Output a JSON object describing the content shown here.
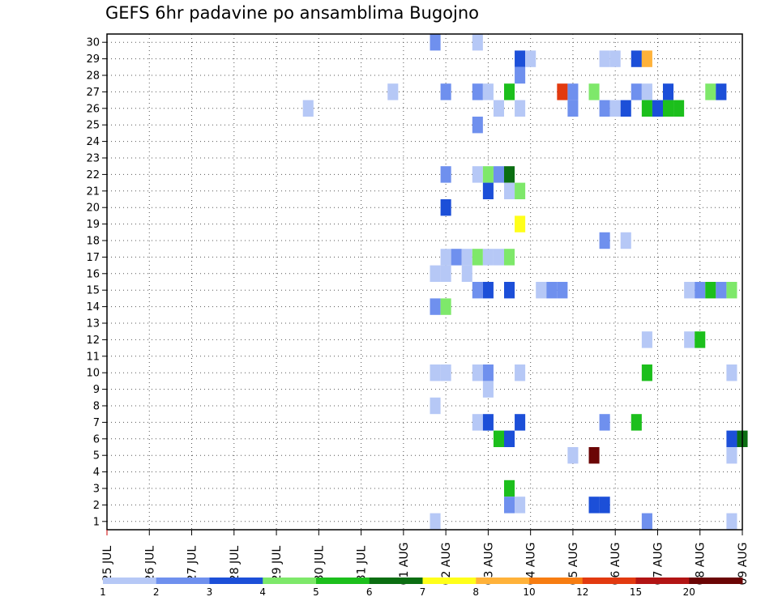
{
  "chart_data": {
    "type": "heatmap",
    "title": "GEFS 6hr padavine po ansamblima Bugojno",
    "xlabel": "",
    "ylabel": "",
    "x_tick_labels": [
      "25 JUL",
      "26 JUL",
      "27 JUL",
      "28 JUL",
      "29 JUL",
      "30 JUL",
      "31 JUL",
      "01 AUG",
      "02 AUG",
      "03 AUG",
      "04 AUG",
      "05 AUG",
      "06 AUG",
      "07 AUG",
      "08 AUG",
      "09 AUG"
    ],
    "x_range_days": [
      0,
      15
    ],
    "y_tick_labels": [
      "1",
      "2",
      "3",
      "4",
      "5",
      "6",
      "7",
      "8",
      "9",
      "10",
      "11",
      "12",
      "13",
      "14",
      "15",
      "16",
      "17",
      "18",
      "19",
      "20",
      "21",
      "22",
      "23",
      "24",
      "25",
      "26",
      "27",
      "28",
      "29",
      "30"
    ],
    "y_range": [
      0.5,
      30.5
    ],
    "grid": true,
    "colorbar": {
      "levels": [
        1,
        2,
        3,
        4,
        5,
        6,
        7,
        8,
        10,
        12,
        15,
        20
      ],
      "tick_labels": [
        "1",
        "2",
        "3",
        "4",
        "5",
        "6",
        "7",
        "8",
        "10",
        "12",
        "15",
        "20"
      ],
      "colors": [
        "#b6c8f6",
        "#6f90ee",
        "#1c4fd8",
        "#7ee86a",
        "#1cbf1c",
        "#0b6e12",
        "#ffff1a",
        "#ffb23a",
        "#f77d12",
        "#e23a10",
        "#b21414",
        "#6b0505"
      ]
    },
    "cells": [
      {
        "member": 30,
        "day": 7.75,
        "bin": 1
      },
      {
        "member": 30,
        "day": 8.75,
        "bin": 0
      },
      {
        "member": 29,
        "day": 9.75,
        "bin": 2
      },
      {
        "member": 29,
        "day": 10,
        "bin": 0
      },
      {
        "member": 29,
        "day": 11.75,
        "bin": 0
      },
      {
        "member": 29,
        "day": 12,
        "bin": 0
      },
      {
        "member": 29,
        "day": 12.5,
        "bin": 2
      },
      {
        "member": 29,
        "day": 12.75,
        "bin": 7
      },
      {
        "member": 28,
        "day": 9.75,
        "bin": 1
      },
      {
        "member": 27,
        "day": 6.75,
        "bin": 0
      },
      {
        "member": 27,
        "day": 8,
        "bin": 1
      },
      {
        "member": 27,
        "day": 8.75,
        "bin": 1
      },
      {
        "member": 27,
        "day": 9,
        "bin": 0
      },
      {
        "member": 27,
        "day": 9.5,
        "bin": 4
      },
      {
        "member": 27,
        "day": 10.75,
        "bin": 9
      },
      {
        "member": 27,
        "day": 11,
        "bin": 1
      },
      {
        "member": 27,
        "day": 11.5,
        "bin": 3
      },
      {
        "member": 27,
        "day": 12.5,
        "bin": 1
      },
      {
        "member": 27,
        "day": 12.75,
        "bin": 0
      },
      {
        "member": 27,
        "day": 13.25,
        "bin": 2
      },
      {
        "member": 27,
        "day": 14.25,
        "bin": 3
      },
      {
        "member": 27,
        "day": 14.5,
        "bin": 2
      },
      {
        "member": 26,
        "day": 4.75,
        "bin": 0
      },
      {
        "member": 26,
        "day": 9.25,
        "bin": 0
      },
      {
        "member": 26,
        "day": 9.75,
        "bin": 0
      },
      {
        "member": 26,
        "day": 11,
        "bin": 1
      },
      {
        "member": 26,
        "day": 11.75,
        "bin": 1
      },
      {
        "member": 26,
        "day": 12,
        "bin": 0
      },
      {
        "member": 26,
        "day": 12.25,
        "bin": 2
      },
      {
        "member": 26,
        "day": 12.75,
        "bin": 4
      },
      {
        "member": 26,
        "day": 13,
        "bin": 2
      },
      {
        "member": 26,
        "day": 13.25,
        "bin": 4
      },
      {
        "member": 26,
        "day": 13.5,
        "bin": 4
      },
      {
        "member": 25,
        "day": 8.75,
        "bin": 1
      },
      {
        "member": 22,
        "day": 8,
        "bin": 1
      },
      {
        "member": 22,
        "day": 8.75,
        "bin": 0
      },
      {
        "member": 22,
        "day": 9,
        "bin": 3
      },
      {
        "member": 22,
        "day": 9.25,
        "bin": 1
      },
      {
        "member": 22,
        "day": 9.5,
        "bin": 5
      },
      {
        "member": 21,
        "day": 9,
        "bin": 2
      },
      {
        "member": 21,
        "day": 9.5,
        "bin": 0
      },
      {
        "member": 21,
        "day": 9.75,
        "bin": 3
      },
      {
        "member": 20,
        "day": 8,
        "bin": 2
      },
      {
        "member": 19,
        "day": 9.75,
        "bin": 6
      },
      {
        "member": 18,
        "day": 11.75,
        "bin": 1
      },
      {
        "member": 18,
        "day": 12.25,
        "bin": 0
      },
      {
        "member": 17,
        "day": 8,
        "bin": 0
      },
      {
        "member": 17,
        "day": 8.25,
        "bin": 1
      },
      {
        "member": 17,
        "day": 8.5,
        "bin": 0
      },
      {
        "member": 17,
        "day": 8.75,
        "bin": 3
      },
      {
        "member": 17,
        "day": 9,
        "bin": 0
      },
      {
        "member": 17,
        "day": 9.25,
        "bin": 0
      },
      {
        "member": 17,
        "day": 9.5,
        "bin": 3
      },
      {
        "member": 16,
        "day": 7.75,
        "bin": 0
      },
      {
        "member": 16,
        "day": 8,
        "bin": 0
      },
      {
        "member": 16,
        "day": 8.5,
        "bin": 0
      },
      {
        "member": 15,
        "day": 8.75,
        "bin": 1
      },
      {
        "member": 15,
        "day": 9,
        "bin": 2
      },
      {
        "member": 15,
        "day": 9.5,
        "bin": 2
      },
      {
        "member": 15,
        "day": 10.25,
        "bin": 0
      },
      {
        "member": 15,
        "day": 10.5,
        "bin": 1
      },
      {
        "member": 15,
        "day": 10.75,
        "bin": 1
      },
      {
        "member": 15,
        "day": 13.75,
        "bin": 0
      },
      {
        "member": 15,
        "day": 14,
        "bin": 1
      },
      {
        "member": 15,
        "day": 14.25,
        "bin": 4
      },
      {
        "member": 15,
        "day": 14.5,
        "bin": 1
      },
      {
        "member": 15,
        "day": 14.75,
        "bin": 3
      },
      {
        "member": 14,
        "day": 7.75,
        "bin": 1
      },
      {
        "member": 14,
        "day": 8,
        "bin": 3
      },
      {
        "member": 12,
        "day": 12.75,
        "bin": 0
      },
      {
        "member": 12,
        "day": 13.75,
        "bin": 0
      },
      {
        "member": 12,
        "day": 14,
        "bin": 4
      },
      {
        "member": 10,
        "day": 7.75,
        "bin": 0
      },
      {
        "member": 10,
        "day": 8,
        "bin": 0
      },
      {
        "member": 10,
        "day": 8.75,
        "bin": 0
      },
      {
        "member": 10,
        "day": 9,
        "bin": 1
      },
      {
        "member": 10,
        "day": 9.75,
        "bin": 0
      },
      {
        "member": 10,
        "day": 12.75,
        "bin": 4
      },
      {
        "member": 10,
        "day": 14.75,
        "bin": 0
      },
      {
        "member": 9,
        "day": 9,
        "bin": 0
      },
      {
        "member": 8,
        "day": 7.75,
        "bin": 0
      },
      {
        "member": 7,
        "day": 8.75,
        "bin": 0
      },
      {
        "member": 7,
        "day": 9,
        "bin": 2
      },
      {
        "member": 7,
        "day": 9.75,
        "bin": 2
      },
      {
        "member": 7,
        "day": 11.75,
        "bin": 1
      },
      {
        "member": 7,
        "day": 12.5,
        "bin": 4
      },
      {
        "member": 6,
        "day": 9.25,
        "bin": 4
      },
      {
        "member": 6,
        "day": 9.5,
        "bin": 2
      },
      {
        "member": 6,
        "day": 14.75,
        "bin": 2
      },
      {
        "member": 6,
        "day": 15,
        "bin": 5
      },
      {
        "member": 5,
        "day": 11,
        "bin": 0
      },
      {
        "member": 5,
        "day": 11.5,
        "bin": 11
      },
      {
        "member": 5,
        "day": 14.75,
        "bin": 0
      },
      {
        "member": 3,
        "day": 9.5,
        "bin": 4
      },
      {
        "member": 2,
        "day": 9.5,
        "bin": 1
      },
      {
        "member": 2,
        "day": 9.75,
        "bin": 0
      },
      {
        "member": 2,
        "day": 11.5,
        "bin": 2
      },
      {
        "member": 2,
        "day": 11.75,
        "bin": 2
      },
      {
        "member": 1,
        "day": 7.75,
        "bin": 0
      },
      {
        "member": 1,
        "day": 12.75,
        "bin": 1
      },
      {
        "member": 1,
        "day": 14.75,
        "bin": 0
      }
    ]
  }
}
